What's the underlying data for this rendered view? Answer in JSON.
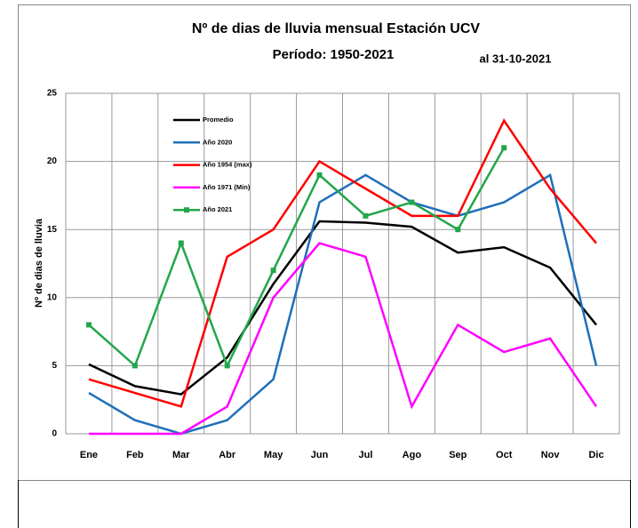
{
  "chart_data": {
    "type": "line",
    "title": "Nº de dias de lluvia mensual Estación UCV",
    "subtitle": "Período:  1950-2021",
    "annotation": "al 31-10-2021",
    "y_label": "Nº de dias de lluvia",
    "categories": [
      "Ene",
      "Feb",
      "Mar",
      "Abr",
      "May",
      "Jun",
      "Jul",
      "Ago",
      "Sep",
      "Oct",
      "Nov",
      "Dic"
    ],
    "series": [
      {
        "name": "Promedio",
        "color": "#000000",
        "marker": false,
        "values": [
          5.1,
          3.5,
          2.9,
          5.6,
          11,
          15.6,
          15.5,
          15.2,
          13.3,
          13.7,
          12.2,
          8
        ]
      },
      {
        "name": "Año 2020",
        "color": "#1f6fb8",
        "marker": false,
        "values": [
          3,
          1,
          0,
          1,
          4,
          17,
          19,
          17,
          16,
          17,
          19,
          5
        ]
      },
      {
        "name": "Año 1954 (max)",
        "color": "#ff0000",
        "marker": false,
        "values": [
          4,
          3,
          2,
          13,
          15,
          20,
          18,
          16,
          16,
          23,
          18,
          14
        ]
      },
      {
        "name": "Año 1971 (Min)",
        "color": "#ff00ff",
        "marker": false,
        "values": [
          0,
          0,
          0,
          2,
          10,
          14,
          13,
          2,
          8,
          6,
          7,
          2
        ]
      },
      {
        "name": "Año 2021",
        "color": "#22a64a",
        "marker": true,
        "values": [
          8,
          5,
          14,
          5,
          12,
          19,
          16,
          17,
          15,
          21,
          null,
          null
        ]
      }
    ],
    "ylim": [
      0,
      25
    ],
    "yticks": [
      0,
      5,
      10,
      15,
      20,
      25
    ],
    "grid": true,
    "legend": "upper left"
  }
}
